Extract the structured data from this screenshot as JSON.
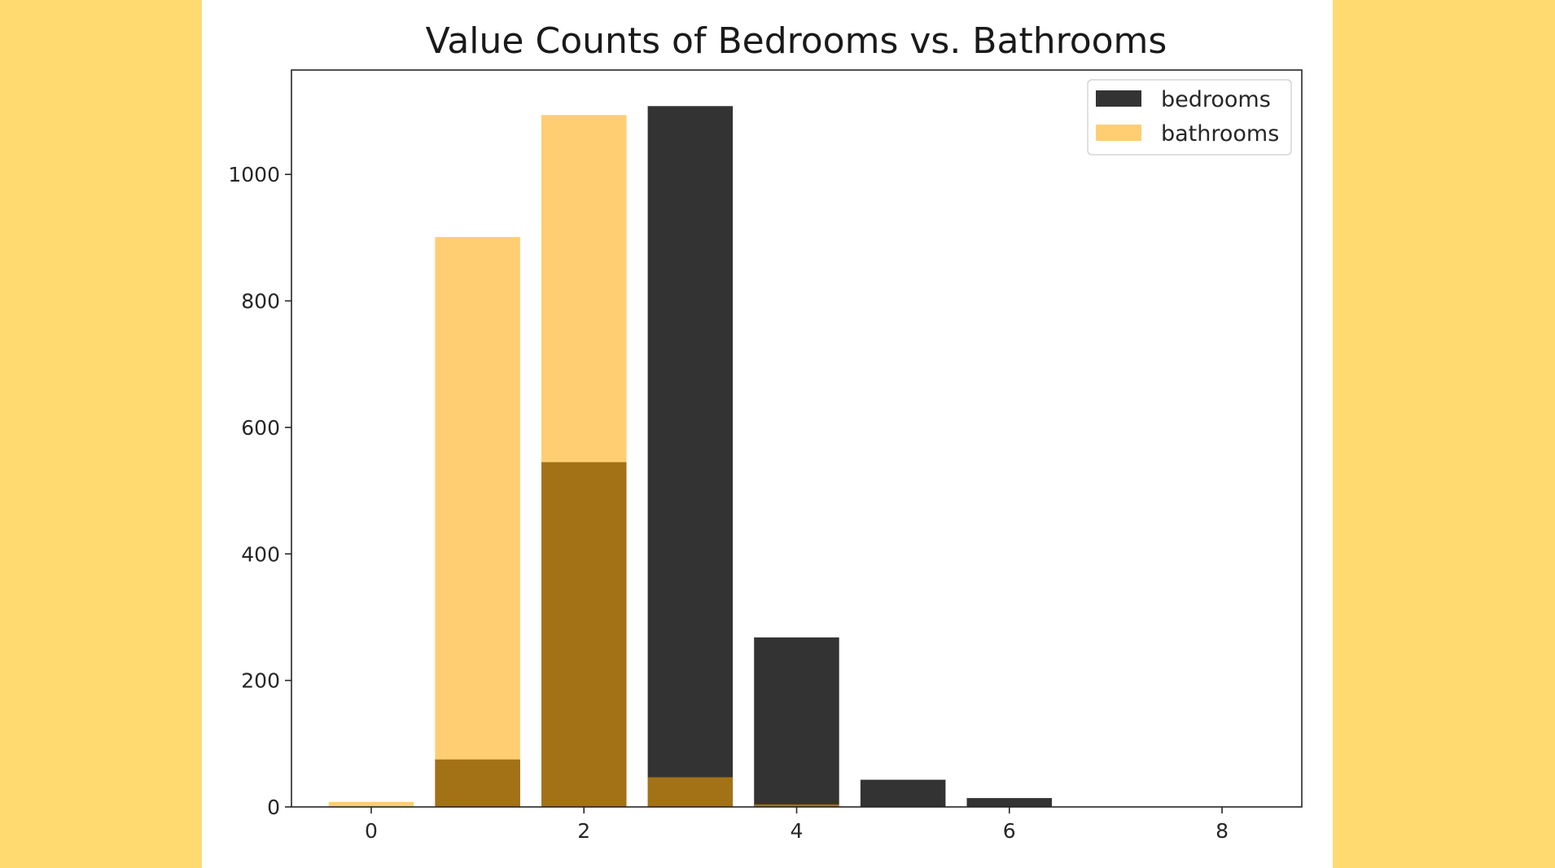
{
  "page": {
    "background_color": "#FEDA71",
    "panel_color": "#FFFFFF"
  },
  "chart_data": {
    "type": "bar",
    "title": "Value Counts of Bedrooms vs. Bathrooms",
    "xlabel": "",
    "ylabel": "",
    "xlim": [
      -0.75,
      8.75
    ],
    "ylim": [
      0,
      1165
    ],
    "xticks": [
      0,
      2,
      4,
      6,
      8
    ],
    "yticks": [
      0,
      200,
      400,
      600,
      800,
      1000
    ],
    "bar_width": 0.8,
    "grid": false,
    "legend_position": "top-right",
    "series": [
      {
        "name": "bedrooms",
        "color": "#000000",
        "alpha": 0.8,
        "x": [
          0,
          1,
          2,
          3,
          4,
          5,
          6,
          7,
          8
        ],
        "values": [
          0,
          75,
          545,
          1108,
          268,
          43,
          14,
          0,
          0
        ]
      },
      {
        "name": "bathrooms",
        "color": "#FFA500",
        "alpha": 0.55,
        "x": [
          0,
          1,
          2,
          3,
          4
        ],
        "values": [
          8,
          901,
          1094,
          47,
          4
        ]
      }
    ]
  }
}
